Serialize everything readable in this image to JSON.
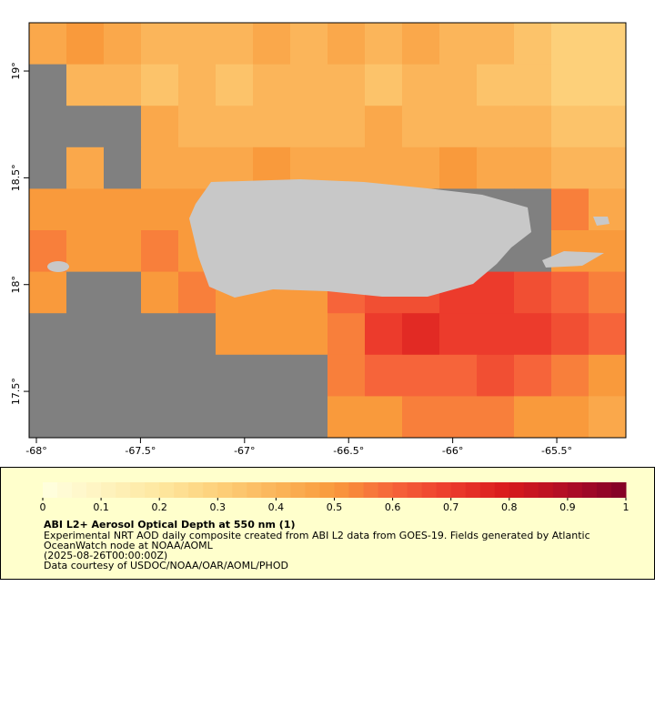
{
  "chart_data": {
    "type": "heatmap",
    "xlim": [
      -68.035,
      -65.168
    ],
    "ylim": [
      17.283,
      19.226
    ],
    "xticks": [
      {
        "value": -68,
        "label": "-68°"
      },
      {
        "value": -67.5,
        "label": "-67.5°"
      },
      {
        "value": -67,
        "label": "-67°"
      },
      {
        "value": -66.5,
        "label": "-66.5°"
      },
      {
        "value": -66,
        "label": "-66°"
      },
      {
        "value": -65.5,
        "label": "-65.5°"
      }
    ],
    "yticks": [
      {
        "value": 17.5,
        "label": "17.5°"
      },
      {
        "value": 18,
        "label": "18°"
      },
      {
        "value": 18.5,
        "label": "18.5°"
      },
      {
        "value": 19,
        "label": "19°"
      }
    ],
    "values": [
      [
        0.45,
        0.5,
        0.45,
        0.4,
        0.4,
        0.4,
        0.45,
        0.4,
        0.45,
        0.4,
        0.45,
        0.4,
        0.4,
        0.35,
        0.3,
        0.3
      ],
      [
        null,
        0.4,
        0.4,
        0.35,
        0.4,
        0.35,
        0.4,
        0.4,
        0.4,
        0.35,
        0.4,
        0.4,
        0.35,
        0.35,
        0.3,
        0.3
      ],
      [
        null,
        null,
        null,
        0.45,
        0.4,
        0.4,
        0.4,
        0.4,
        0.4,
        0.45,
        0.4,
        0.4,
        0.4,
        0.4,
        0.35,
        0.35
      ],
      [
        null,
        0.45,
        null,
        0.45,
        0.45,
        0.45,
        0.5,
        0.45,
        0.45,
        0.45,
        0.45,
        0.5,
        0.45,
        0.45,
        0.4,
        0.4
      ],
      [
        0.5,
        0.5,
        0.5,
        0.5,
        0.5,
        null,
        null,
        null,
        null,
        null,
        null,
        null,
        null,
        null,
        0.55,
        0.45
      ],
      [
        0.55,
        0.5,
        0.5,
        0.55,
        0.5,
        null,
        null,
        null,
        null,
        null,
        null,
        null,
        null,
        null,
        0.5,
        0.5
      ],
      [
        0.5,
        null,
        null,
        0.5,
        0.55,
        0.5,
        0.5,
        0.5,
        0.6,
        0.65,
        0.65,
        0.7,
        0.7,
        0.65,
        0.6,
        0.55
      ],
      [
        null,
        null,
        null,
        null,
        null,
        0.5,
        0.5,
        0.5,
        0.55,
        0.7,
        0.75,
        0.7,
        0.7,
        0.7,
        0.65,
        0.6
      ],
      [
        null,
        null,
        null,
        null,
        null,
        null,
        null,
        null,
        0.55,
        0.6,
        0.6,
        0.6,
        0.65,
        0.6,
        0.55,
        0.5
      ],
      [
        null,
        null,
        null,
        null,
        null,
        null,
        null,
        null,
        0.5,
        0.5,
        0.55,
        0.55,
        0.55,
        0.5,
        0.5,
        0.45
      ]
    ],
    "missing_color": "#808080",
    "colormap": [
      [
        0,
        "#ffffe0"
      ],
      [
        0.2,
        "#fee8a0"
      ],
      [
        0.3,
        "#fdd07a"
      ],
      [
        0.4,
        "#fbb55a"
      ],
      [
        0.5,
        "#f99a3c"
      ],
      [
        0.6,
        "#f6643a"
      ],
      [
        0.7,
        "#ec3b2c"
      ],
      [
        0.8,
        "#d7191c"
      ],
      [
        0.9,
        "#b00d26"
      ],
      [
        1,
        "#800026"
      ]
    ],
    "clim": [
      0,
      1
    ],
    "cticks": [
      0,
      0.1,
      0.2,
      0.3,
      0.4,
      0.5,
      0.6,
      0.7,
      0.8,
      0.9,
      1
    ],
    "title": "ABI L2+ Aerosol Optical Depth at 550 nm (1)",
    "notes": [
      "Experimental NRT AOD daily composite created from ABI L2 data from GOES-19. Fields generated by Atlantic",
      "OceanWatch node at NOAA/AOML",
      "(2025-08-26T00:00:00Z)",
      "Data courtesy of USDOC/NOAA/OAR/AOML/PHOD"
    ]
  }
}
